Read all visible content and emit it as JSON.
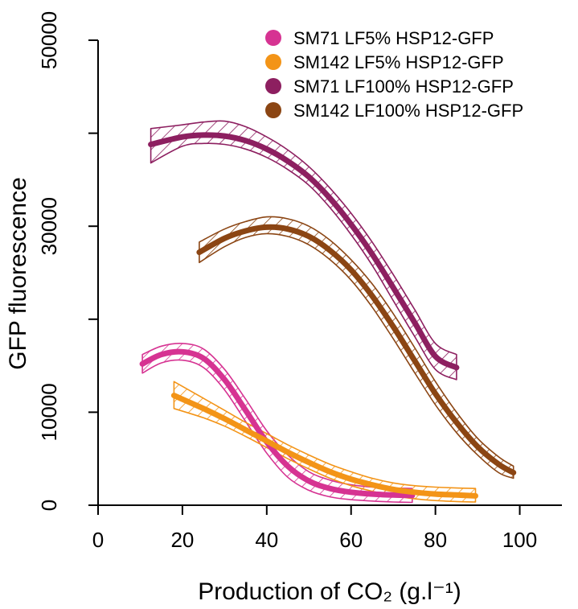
{
  "chart_data": {
    "type": "line",
    "title": "",
    "xlabel": "Production of CO₂ (g.l⁻¹)",
    "ylabel": "GFP fluorescence",
    "xlim": [
      0,
      110
    ],
    "ylim": [
      0,
      50000
    ],
    "x_ticks": [
      0,
      20,
      40,
      60,
      80,
      100
    ],
    "x_tick_labels": [
      "0",
      "20",
      "40",
      "60",
      "80",
      "100"
    ],
    "y_ticks": [
      0,
      10000,
      20000,
      30000,
      40000,
      50000
    ],
    "y_tick_labels": [
      "0",
      "10000",
      "",
      "30000",
      "",
      "50000"
    ],
    "legend_position": "top-right",
    "grid": false,
    "band_style": "hatched confidence band",
    "series": [
      {
        "name": "SM71 LF5% HSP12-GFP",
        "color": "#d63392",
        "x": [
          10.5,
          15,
          20,
          25,
          30,
          35,
          40,
          45,
          50,
          55,
          60,
          65,
          70,
          74.5
        ],
        "y": [
          15200,
          16200,
          16500,
          15800,
          13500,
          10200,
          6800,
          4200,
          2600,
          1800,
          1400,
          1200,
          1100,
          1050
        ],
        "lower": [
          14200,
          15300,
          15600,
          14800,
          12400,
          9000,
          5600,
          3000,
          1600,
          900,
          600,
          450,
          350,
          300
        ],
        "upper": [
          16200,
          17100,
          17400,
          16800,
          14600,
          11400,
          8000,
          5400,
          3600,
          2700,
          2200,
          1950,
          1850,
          1800
        ]
      },
      {
        "name": "SM142 LF5% HSP12-GFP",
        "color": "#f39417",
        "x": [
          18,
          25,
          30,
          35,
          40,
          45,
          50,
          55,
          60,
          65,
          70,
          75,
          80,
          85,
          89.5
        ],
        "y": [
          11800,
          10400,
          9300,
          8100,
          6900,
          5700,
          4600,
          3600,
          2800,
          2200,
          1700,
          1400,
          1200,
          1100,
          1000
        ],
        "lower": [
          10400,
          9400,
          8500,
          7400,
          6200,
          5000,
          3900,
          2900,
          2100,
          1500,
          1000,
          700,
          500,
          400,
          350
        ],
        "upper": [
          13300,
          11500,
          10200,
          8900,
          7700,
          6500,
          5400,
          4400,
          3600,
          2900,
          2400,
          2100,
          1950,
          1850,
          1800
        ]
      },
      {
        "name": "SM71 LF100% HSP12-GFP",
        "color": "#8d1f60",
        "x": [
          12.5,
          20,
          25,
          30,
          35,
          40,
          45,
          50,
          55,
          60,
          65,
          70,
          75,
          80,
          85
        ],
        "y": [
          38800,
          39600,
          39800,
          39700,
          39200,
          38300,
          37000,
          35300,
          33000,
          30200,
          27000,
          23400,
          19700,
          16000,
          14800
        ],
        "lower": [
          36800,
          38600,
          38900,
          38800,
          38300,
          37400,
          36100,
          34400,
          32000,
          29100,
          25800,
          22000,
          18200,
          14600,
          13500
        ],
        "upper": [
          40500,
          40900,
          41200,
          41300,
          40700,
          39600,
          38200,
          36400,
          34100,
          31400,
          28300,
          24800,
          21100,
          17400,
          16200
        ]
      },
      {
        "name": "SM142 LF100% HSP12-GFP",
        "color": "#8b4513",
        "x": [
          24,
          30,
          35,
          40,
          45,
          50,
          55,
          60,
          65,
          70,
          75,
          80,
          85,
          90,
          95,
          98.5
        ],
        "y": [
          27200,
          28700,
          29500,
          29900,
          29700,
          28900,
          27400,
          25300,
          22500,
          19200,
          15600,
          12000,
          8900,
          6300,
          4400,
          3500
        ],
        "lower": [
          26100,
          27800,
          28800,
          29200,
          28900,
          28000,
          26400,
          24200,
          21300,
          17900,
          14300,
          10800,
          7800,
          5400,
          3500,
          2900
        ],
        "upper": [
          28300,
          29700,
          30500,
          31000,
          30800,
          30000,
          28500,
          26400,
          23800,
          20600,
          17000,
          13300,
          10000,
          7200,
          5200,
          4200
        ]
      }
    ]
  }
}
